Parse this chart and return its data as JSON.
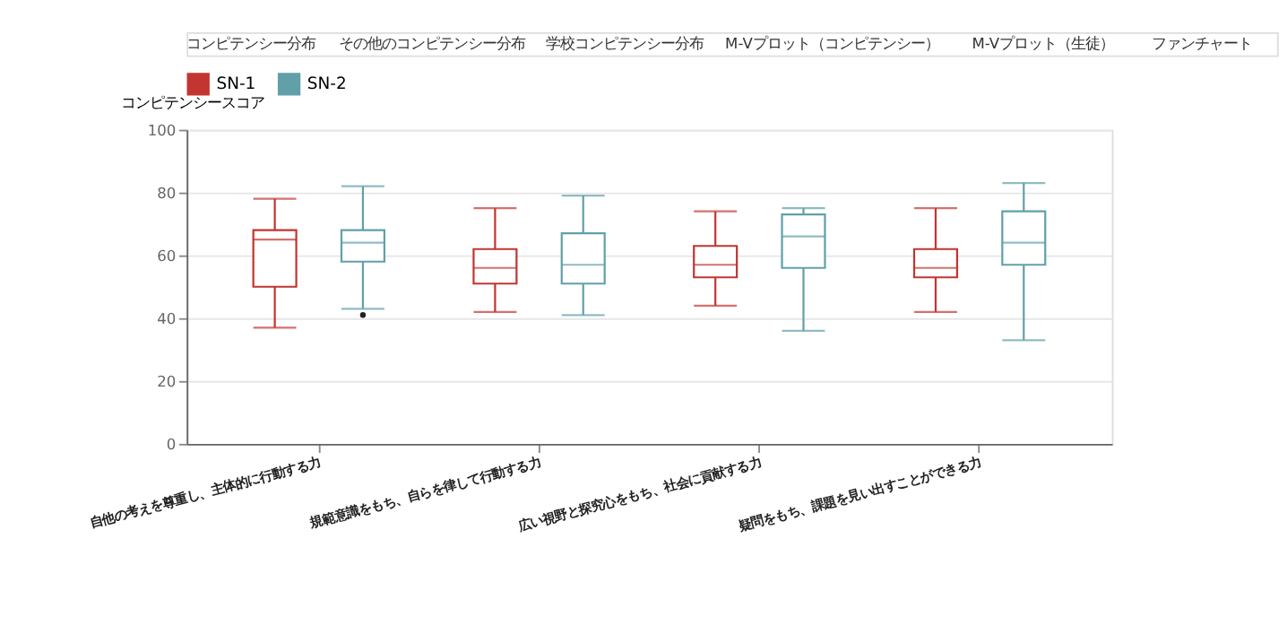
{
  "chart_data": {
    "type": "box",
    "ylabel": "コンピテンシースコア",
    "annotations": [
      "コンピテンシー分布",
      "その他のコンピテンシー分布",
      "学校コンピテンシー分布",
      "M-Vプロット（コンピテンシー）",
      "M-Vプロット（生徒）",
      "ファンチャート"
    ],
    "categories": [
      "自他の考えを尊重し、主体的に行動する力",
      "規範意識をもち、自らを律して行動する力",
      "広い視野と探究心をもち、社会に貢献する力",
      "疑問をもち、課題を見い出すことができる力"
    ],
    "series": [
      {
        "name": "SN-1",
        "color": "#c23531",
        "boxes": [
          {
            "low": 37,
            "q1": 50,
            "median": 65,
            "q3": 68,
            "high": 78
          },
          {
            "low": 42,
            "q1": 51,
            "median": 56,
            "q3": 62,
            "high": 75
          },
          {
            "low": 44,
            "q1": 53,
            "median": 57,
            "q3": 63,
            "high": 74
          },
          {
            "low": 42,
            "q1": 53,
            "median": 56,
            "q3": 62,
            "high": 75
          }
        ]
      },
      {
        "name": "SN-2",
        "color": "#61a0a8",
        "boxes": [
          {
            "low": 43,
            "q1": 58,
            "median": 64,
            "q3": 68,
            "high": 82,
            "outliers": [
              41
            ]
          },
          {
            "low": 41,
            "q1": 51,
            "median": 57,
            "q3": 67,
            "high": 79
          },
          {
            "low": 36,
            "q1": 56,
            "median": 66,
            "q3": 73,
            "high": 75
          },
          {
            "low": 33,
            "q1": 57,
            "median": 64,
            "q3": 74,
            "high": 83
          }
        ]
      }
    ],
    "ylim": [
      0,
      100
    ],
    "yticks": [
      0,
      20,
      40,
      60,
      80,
      100
    ],
    "grid": "y",
    "legend": "top"
  }
}
